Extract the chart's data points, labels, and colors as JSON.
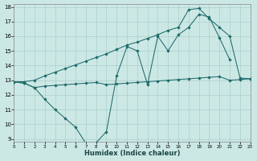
{
  "bg_color": "#cce8e5",
  "grid_color": "#aacfcc",
  "line_color": "#1e6b6b",
  "xlim": [
    0,
    23
  ],
  "ylim": [
    8.8,
    18.2
  ],
  "xticks": [
    0,
    1,
    2,
    3,
    4,
    5,
    6,
    7,
    8,
    9,
    10,
    11,
    12,
    13,
    14,
    15,
    16,
    17,
    18,
    19,
    20,
    21,
    22,
    23
  ],
  "yticks": [
    9,
    10,
    11,
    12,
    13,
    14,
    15,
    16,
    17,
    18
  ],
  "xlabel": "Humidex (Indice chaleur)",
  "line1_x": [
    0,
    1,
    2,
    3,
    4,
    5,
    6,
    7,
    8,
    9,
    10,
    11,
    12,
    13,
    14,
    15,
    16,
    17,
    18,
    19,
    20,
    21,
    22,
    23
  ],
  "line1_y": [
    12.9,
    12.8,
    12.5,
    12.6,
    12.65,
    12.7,
    12.75,
    12.8,
    12.85,
    12.7,
    12.75,
    12.8,
    12.85,
    12.9,
    12.95,
    13.0,
    13.05,
    13.1,
    13.15,
    13.2,
    13.25,
    13.0,
    13.05,
    13.1
  ],
  "line2_x": [
    0,
    1,
    2,
    3,
    4,
    5,
    6,
    7,
    8,
    9,
    10,
    11,
    12,
    13,
    14,
    15,
    16,
    17,
    18,
    19,
    20,
    21
  ],
  "line2_y": [
    12.9,
    12.8,
    12.5,
    11.7,
    11.0,
    10.4,
    9.8,
    8.7,
    8.75,
    9.5,
    13.3,
    15.3,
    15.0,
    12.7,
    16.0,
    15.0,
    16.1,
    16.6,
    17.5,
    17.3,
    15.9,
    14.4
  ],
  "line3_x": [
    0,
    1,
    2,
    3,
    4,
    5,
    6,
    7,
    8,
    9,
    10,
    11,
    12,
    13,
    14,
    15,
    16,
    17,
    18,
    19,
    20,
    21,
    22,
    23
  ],
  "line3_y": [
    12.9,
    12.9,
    13.0,
    13.3,
    13.55,
    13.8,
    14.05,
    14.3,
    14.55,
    14.8,
    15.1,
    15.4,
    15.6,
    15.85,
    16.1,
    16.4,
    16.6,
    17.8,
    17.9,
    17.2,
    16.6,
    16.0,
    13.15,
    13.1
  ]
}
